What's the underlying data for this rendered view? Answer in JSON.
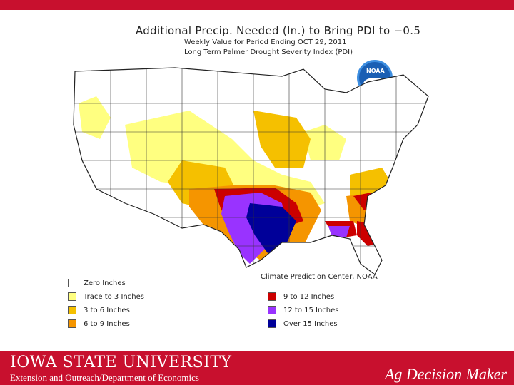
{
  "title": "Additional Precip. Needed (In.) to Bring PDI to −0.5",
  "subtitle": "Weekly Value for Period Ending OCT 29, 2011",
  "index_label": "Long Term Palmer Drought Severity Index (PDI)",
  "logo_text": "NOAA",
  "credit": "Climate Prediction Center, NOAA",
  "legend": [
    {
      "label": "Zero Inches",
      "color": "#ffffff"
    },
    {
      "label": "Trace to 3 Inches",
      "color": "#ffff80"
    },
    {
      "label": "3 to 6 Inches",
      "color": "#f5c000"
    },
    {
      "label": "6 to 9 Inches",
      "color": "#f59500"
    },
    {
      "label": "9 to 12 Inches",
      "color": "#cc0000"
    },
    {
      "label": "12 to 15 Inches",
      "color": "#9933ff"
    },
    {
      "label": "Over 15 Inches",
      "color": "#000099"
    }
  ],
  "footer": {
    "university": "IOWA STATE UNIVERSITY",
    "department": "Extension and Outreach/Department of Economics",
    "program": "Ag Decision Maker"
  }
}
